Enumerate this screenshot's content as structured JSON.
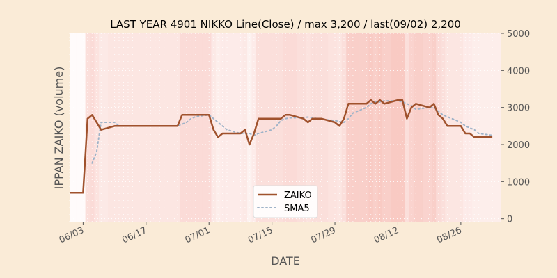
{
  "chart_data": {
    "type": "line",
    "title": "LAST YEAR 4901 NIKKO Line(Close) / max 3,200 / last(09/02) 2,200",
    "xlabel": "DATE",
    "ylabel": "IPPAN ZAIKO (volume)",
    "ylim": [
      -100,
      5000
    ],
    "yticks": [
      0,
      1000,
      2000,
      3000,
      4000,
      5000
    ],
    "xlim": [
      "05-31",
      "09-04"
    ],
    "xticks": [
      {
        "date": "06-03",
        "label": "06/03"
      },
      {
        "date": "06-17",
        "label": "06/17"
      },
      {
        "date": "07-01",
        "label": "07/01"
      },
      {
        "date": "07-15",
        "label": "07/15"
      },
      {
        "date": "07-29",
        "label": "07/29"
      },
      {
        "date": "08-12",
        "label": "08/12"
      },
      {
        "date": "08-26",
        "label": "08/26"
      }
    ],
    "grid": true,
    "legend_position": "bottom-center",
    "colors": {
      "background": "#faebd7",
      "plot_background": "#ffffff",
      "zaiko_line": "#a0522d",
      "sma_line": "#9fb3c8",
      "band": "#f08070",
      "grid": "#ffffff",
      "text": "#555555"
    },
    "series": [
      {
        "name": "ZAIKO",
        "dates": [
          "05-31",
          "06-03",
          "06-04",
          "06-05",
          "06-06",
          "06-07",
          "06-10",
          "06-11",
          "06-12",
          "06-13",
          "06-14",
          "06-17",
          "06-18",
          "06-19",
          "06-20",
          "06-21",
          "06-24",
          "06-25",
          "06-26",
          "06-27",
          "06-28",
          "07-01",
          "07-02",
          "07-03",
          "07-04",
          "07-05",
          "07-08",
          "07-09",
          "07-10",
          "07-11",
          "07-12",
          "07-15",
          "07-16",
          "07-17",
          "07-18",
          "07-19",
          "07-22",
          "07-23",
          "07-24",
          "07-25",
          "07-26",
          "07-29",
          "07-30",
          "07-31",
          "08-01",
          "08-02",
          "08-05",
          "08-06",
          "08-07",
          "08-08",
          "08-09",
          "08-12",
          "08-13",
          "08-14",
          "08-15",
          "08-16",
          "08-19",
          "08-20",
          "08-21",
          "08-22",
          "08-23",
          "08-26",
          "08-27",
          "08-28",
          "08-29",
          "08-30",
          "09-02"
        ],
        "values": [
          700,
          700,
          2700,
          2800,
          2600,
          2400,
          2500,
          2500,
          2500,
          2500,
          2500,
          2500,
          2500,
          2500,
          2500,
          2500,
          2500,
          2800,
          2800,
          2800,
          2800,
          2800,
          2400,
          2200,
          2300,
          2300,
          2300,
          2400,
          2000,
          2300,
          2700,
          2700,
          2700,
          2700,
          2800,
          2800,
          2700,
          2600,
          2700,
          2700,
          2700,
          2600,
          2500,
          2700,
          3100,
          3100,
          3100,
          3200,
          3100,
          3200,
          3100,
          3200,
          3200,
          2700,
          3000,
          3100,
          3000,
          3100,
          2800,
          2700,
          2500,
          2500,
          2300,
          2300,
          2200,
          2200,
          2200
        ]
      },
      {
        "name": "SMA5",
        "dates": [
          "06-05",
          "06-06",
          "06-07",
          "06-10",
          "06-11",
          "06-12",
          "06-13",
          "06-14",
          "06-17",
          "06-18",
          "06-19",
          "06-20",
          "06-21",
          "06-24",
          "06-25",
          "06-26",
          "06-27",
          "06-28",
          "07-01",
          "07-02",
          "07-03",
          "07-04",
          "07-05",
          "07-08",
          "07-09",
          "07-10",
          "07-11",
          "07-12",
          "07-15",
          "07-16",
          "07-17",
          "07-18",
          "07-19",
          "07-22",
          "07-23",
          "07-24",
          "07-25",
          "07-26",
          "07-29",
          "07-30",
          "07-31",
          "08-01",
          "08-02",
          "08-05",
          "08-06",
          "08-07",
          "08-08",
          "08-09",
          "08-12",
          "08-13",
          "08-14",
          "08-15",
          "08-16",
          "08-19",
          "08-20",
          "08-21",
          "08-22",
          "08-23",
          "08-26",
          "08-27",
          "08-28",
          "08-29",
          "08-30",
          "09-02"
        ],
        "values": [
          1500,
          1800,
          2600,
          2600,
          2500,
          2500,
          2500,
          2500,
          2500,
          2500,
          2500,
          2500,
          2500,
          2500,
          2550,
          2600,
          2700,
          2750,
          2800,
          2700,
          2600,
          2500,
          2400,
          2300,
          2300,
          2300,
          2250,
          2300,
          2400,
          2500,
          2650,
          2700,
          2720,
          2730,
          2740,
          2730,
          2700,
          2680,
          2650,
          2620,
          2600,
          2700,
          2850,
          3000,
          3100,
          3150,
          3150,
          3180,
          3180,
          3150,
          3100,
          3050,
          2950,
          3000,
          3000,
          2900,
          2800,
          2750,
          2600,
          2500,
          2450,
          2400,
          2300,
          2250
        ]
      }
    ]
  }
}
